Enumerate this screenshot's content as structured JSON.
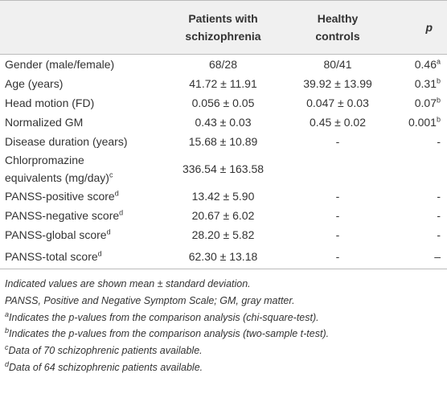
{
  "table": {
    "header": {
      "patients": [
        "Patients with",
        "schizophrenia"
      ],
      "controls": [
        "Healthy",
        "controls"
      ],
      "p": "p"
    },
    "rows": [
      {
        "label": [
          "Gender (male/female)"
        ],
        "patients": "68/28",
        "controls": "80/41",
        "p": "0.46",
        "p_sup": "a"
      },
      {
        "label": [
          "Age (years)"
        ],
        "patients": "41.72 ± 11.91",
        "controls": "39.92 ± 13.99",
        "p": "0.31",
        "p_sup": "b"
      },
      {
        "label": [
          "Head motion (FD)"
        ],
        "patients": "0.056 ± 0.05",
        "controls": "0.047 ± 0.03",
        "p": "0.07",
        "p_sup": "b"
      },
      {
        "label": [
          "Normalized GM"
        ],
        "patients": "0.43 ± 0.03",
        "controls": "0.45 ± 0.02",
        "p": "0.001",
        "p_sup": "b"
      },
      {
        "label": [
          "Disease duration (years)"
        ],
        "patients": "15.68 ± 10.89",
        "controls": "-",
        "p": "-"
      },
      {
        "label": [
          "Chlorpromazine",
          "equivalents (mg/day)"
        ],
        "label_sup": "c",
        "patients": "336.54 ± 163.58"
      },
      {
        "label": [
          "PANSS-positive score"
        ],
        "label_sup": "d",
        "patients": "13.42 ± 5.90",
        "controls": "-",
        "p": "-"
      },
      {
        "label": [
          "PANSS-negative score"
        ],
        "label_sup": "d",
        "patients": "20.67 ± 6.02",
        "controls": "-",
        "p": "-"
      },
      {
        "label": [
          "PANSS-global score"
        ],
        "label_sup": "d",
        "patients": "28.20 ± 5.82",
        "controls": "-",
        "p": "-"
      },
      {
        "label": [
          "PANSS-total score"
        ],
        "label_sup": "d",
        "patients": "62.30 ± 13.18",
        "controls": "-",
        "p": "–"
      }
    ]
  },
  "footnotes": [
    {
      "text": "Indicated values are shown mean ± standard deviation."
    },
    {
      "text": "PANSS, Positive and Negative Symptom Scale; GM, gray matter."
    },
    {
      "sup": "a",
      "text": "Indicates the p-values from the comparison analysis (chi-square-test)."
    },
    {
      "sup": "b",
      "text": "Indicates the p-values from the comparison analysis (two-sample t-test)."
    },
    {
      "sup": "c",
      "text": "Data of 70 schizophrenic patients available."
    },
    {
      "sup": "d",
      "text": "Data of 64 schizophrenic patients available."
    }
  ]
}
